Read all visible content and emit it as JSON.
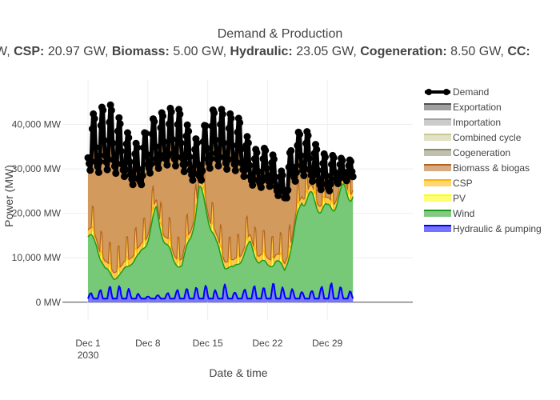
{
  "chart_data": {
    "type": "area",
    "title": "Demand & Production",
    "subtitle_items": [
      {
        "label": "",
        "value": "W,"
      },
      {
        "label": "CSP:",
        "value": "20.97 GW,"
      },
      {
        "label": "Biomass:",
        "value": "5.00 GW,"
      },
      {
        "label": "Hydraulic:",
        "value": "23.05 GW,"
      },
      {
        "label": "Cogeneration:",
        "value": "8.50 GW,"
      },
      {
        "label": "CC:",
        "value": ""
      }
    ],
    "xlabel": "Date & time",
    "ylabel": "Power (MW)",
    "x_range": [
      "2030-11-28",
      "2031-01-08"
    ],
    "ylim": [
      -4000,
      50000
    ],
    "y_ticks": [
      0,
      10000,
      20000,
      30000,
      40000
    ],
    "y_tick_labels": [
      "0 MW",
      "10,000 MW",
      "20,000 MW",
      "30,000 MW",
      "40,000 MW"
    ],
    "x_ticks": [
      "2030-12-01",
      "2030-12-08",
      "2030-12-15",
      "2030-12-22",
      "2030-12-29"
    ],
    "x_tick_labels": [
      "Dec 1",
      "Dec 8",
      "Dec 15",
      "Dec 22",
      "Dec 29"
    ],
    "x_tick_year": "2030",
    "grid": true,
    "legend_position": "right",
    "x_dates": [
      "2030-12-01",
      "2030-12-02",
      "2030-12-03",
      "2030-12-04",
      "2030-12-05",
      "2030-12-06",
      "2030-12-07",
      "2030-12-08",
      "2030-12-09",
      "2030-12-10",
      "2030-12-11",
      "2030-12-12",
      "2030-12-13",
      "2030-12-14",
      "2030-12-15",
      "2030-12-16",
      "2030-12-17",
      "2030-12-18",
      "2030-12-19",
      "2030-12-20",
      "2030-12-21",
      "2030-12-22",
      "2030-12-23",
      "2030-12-24",
      "2030-12-25",
      "2030-12-26",
      "2030-12-27",
      "2030-12-28",
      "2030-12-29",
      "2030-12-30",
      "2030-12-31"
    ],
    "series": [
      {
        "name": "Demand",
        "color": "#000000",
        "kind": "line",
        "daily_peak": [
          43000,
          42000,
          45000,
          44000,
          40000,
          37000,
          35000,
          40000,
          42000,
          43000,
          44000,
          43000,
          38000,
          36000,
          42000,
          44000,
          43000,
          42000,
          41000,
          35000,
          34000,
          35000,
          32000,
          28000,
          37000,
          39000,
          38000,
          34000,
          33000,
          33000,
          32000
        ],
        "daily_low": [
          29000,
          28000,
          29000,
          28000,
          28000,
          26000,
          25000,
          28000,
          29000,
          30000,
          30000,
          29000,
          27000,
          26000,
          29000,
          30000,
          29000,
          29000,
          28000,
          26000,
          25000,
          26000,
          24000,
          22000,
          26000,
          28000,
          27000,
          25000,
          24000,
          26000,
          27000
        ]
      },
      {
        "name": "Exportation",
        "color": "#505050",
        "kind": "area"
      },
      {
        "name": "Importation",
        "color": "#a0a0a0",
        "kind": "area"
      },
      {
        "name": "Combined cycle",
        "color": "#c8c896",
        "kind": "area"
      },
      {
        "name": "Cogeneration",
        "color": "#8c8c6e",
        "kind": "area"
      },
      {
        "name": "Biomass & biogas",
        "color": "#b4641e",
        "kind": "area"
      },
      {
        "name": "CSP",
        "color": "#ffb400",
        "kind": "area"
      },
      {
        "name": "PV",
        "color": "#ffff00",
        "kind": "area"
      },
      {
        "name": "Wind",
        "color": "#1e9b1e",
        "kind": "area",
        "daily_low": [
          16000,
          14000,
          8000,
          6000,
          7000,
          10000,
          11000,
          16000,
          22000,
          15000,
          10000,
          9000,
          16000,
          27000,
          22000,
          14000,
          9000,
          8000,
          11000,
          14000,
          10000,
          9000,
          10000,
          8000,
          15000,
          26000,
          25000,
          24000,
          22000,
          25000,
          27000
        ]
      },
      {
        "name": "Hydraulic & pumping",
        "color": "#0000ff",
        "kind": "area",
        "daily_peak": [
          2500,
          3000,
          3500,
          4000,
          3500,
          3000,
          2000,
          1500,
          2000,
          2500,
          3000,
          3500,
          3000,
          3500,
          4000,
          3000,
          5500,
          3000,
          3500,
          4500,
          4000,
          3000,
          5000,
          3000,
          3500,
          3000,
          3500,
          4500,
          5000,
          5000,
          2500
        ]
      }
    ]
  }
}
